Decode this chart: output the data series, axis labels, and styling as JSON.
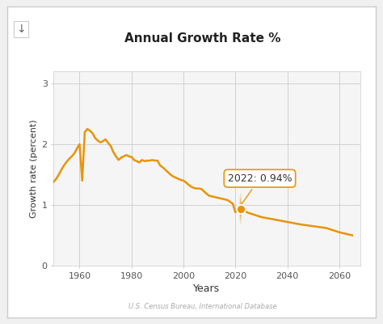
{
  "title": "Annual Growth Rate %",
  "xlabel": "Years",
  "ylabel": "Growth rate (percent)",
  "source": "U.S. Census Bureau, International Database",
  "tooltip_label": "2022: 0.94%",
  "tooltip_x": 2022,
  "tooltip_y": 0.94,
  "line_color": "#E8940A",
  "bg_color": "#ffffff",
  "plot_bg": "#f5f5f5",
  "xlim": [
    1950,
    2068
  ],
  "ylim": [
    0,
    3.2
  ],
  "xticks": [
    1960,
    1980,
    2000,
    2020,
    2040,
    2060
  ],
  "yticks": [
    0,
    1,
    2,
    3
  ],
  "years": [
    1950,
    1951,
    1952,
    1953,
    1954,
    1955,
    1956,
    1957,
    1958,
    1959,
    1960,
    1961,
    1962,
    1963,
    1964,
    1965,
    1966,
    1967,
    1968,
    1969,
    1970,
    1971,
    1972,
    1973,
    1974,
    1975,
    1976,
    1977,
    1978,
    1979,
    1980,
    1981,
    1982,
    1983,
    1984,
    1985,
    1986,
    1987,
    1988,
    1989,
    1990,
    1991,
    1992,
    1993,
    1994,
    1995,
    1996,
    1997,
    1998,
    1999,
    2000,
    2001,
    2002,
    2003,
    2004,
    2005,
    2006,
    2007,
    2008,
    2009,
    2010,
    2011,
    2012,
    2013,
    2014,
    2015,
    2016,
    2017,
    2018,
    2019,
    2020,
    2021,
    2022,
    2023,
    2024,
    2025,
    2030,
    2035,
    2040,
    2045,
    2050,
    2055,
    2060,
    2065
  ],
  "values": [
    1.38,
    1.43,
    1.5,
    1.58,
    1.65,
    1.71,
    1.76,
    1.8,
    1.85,
    1.93,
    2.0,
    1.4,
    2.2,
    2.25,
    2.22,
    2.18,
    2.1,
    2.06,
    2.03,
    2.05,
    2.08,
    2.02,
    1.97,
    1.87,
    1.8,
    1.74,
    1.78,
    1.8,
    1.82,
    1.8,
    1.79,
    1.74,
    1.72,
    1.7,
    1.74,
    1.72,
    1.73,
    1.73,
    1.74,
    1.73,
    1.73,
    1.65,
    1.62,
    1.58,
    1.54,
    1.5,
    1.47,
    1.45,
    1.43,
    1.41,
    1.4,
    1.37,
    1.33,
    1.3,
    1.28,
    1.27,
    1.27,
    1.26,
    1.22,
    1.18,
    1.15,
    1.14,
    1.13,
    1.12,
    1.11,
    1.1,
    1.09,
    1.08,
    1.05,
    1.02,
    0.88,
    0.92,
    0.94,
    0.91,
    0.89,
    0.87,
    0.8,
    0.76,
    0.72,
    0.68,
    0.65,
    0.62,
    0.55,
    0.5
  ]
}
